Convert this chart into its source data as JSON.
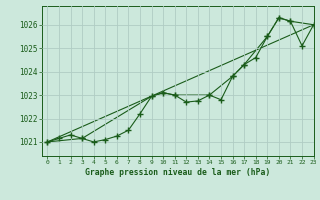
{
  "title": "Graphe pression niveau de la mer (hPa)",
  "background_color": "#cce8dc",
  "grid_color": "#b0ccc4",
  "line_color": "#1a5c1a",
  "xlim": [
    -0.5,
    23
  ],
  "ylim": [
    1020.4,
    1026.8
  ],
  "yticks": [
    1021,
    1022,
    1023,
    1024,
    1025,
    1026
  ],
  "xticks": [
    0,
    1,
    2,
    3,
    4,
    5,
    6,
    7,
    8,
    9,
    10,
    11,
    12,
    13,
    14,
    15,
    16,
    17,
    18,
    19,
    20,
    21,
    22,
    23
  ],
  "series1_x": [
    0,
    1,
    2,
    3,
    4,
    5,
    6,
    7,
    8,
    9,
    10,
    11,
    12,
    13,
    14,
    15,
    16,
    17,
    18,
    19,
    20,
    21,
    22,
    23
  ],
  "series1_y": [
    1021.0,
    1021.15,
    1021.3,
    1021.15,
    1021.0,
    1021.1,
    1021.25,
    1021.5,
    1022.2,
    1022.95,
    1023.1,
    1023.0,
    1022.7,
    1022.75,
    1023.0,
    1022.8,
    1023.8,
    1024.3,
    1024.6,
    1025.5,
    1026.3,
    1026.15,
    1025.1,
    1026.0
  ],
  "series2_x": [
    0,
    3,
    9,
    10,
    11,
    14,
    16,
    17,
    19,
    20,
    21,
    23
  ],
  "series2_y": [
    1021.0,
    1021.15,
    1022.95,
    1023.1,
    1023.0,
    1023.0,
    1023.8,
    1024.3,
    1025.5,
    1026.3,
    1026.15,
    1026.0
  ],
  "series3_x": [
    0,
    23
  ],
  "series3_y": [
    1021.0,
    1026.0
  ],
  "figwidth": 3.2,
  "figheight": 2.0,
  "dpi": 100
}
